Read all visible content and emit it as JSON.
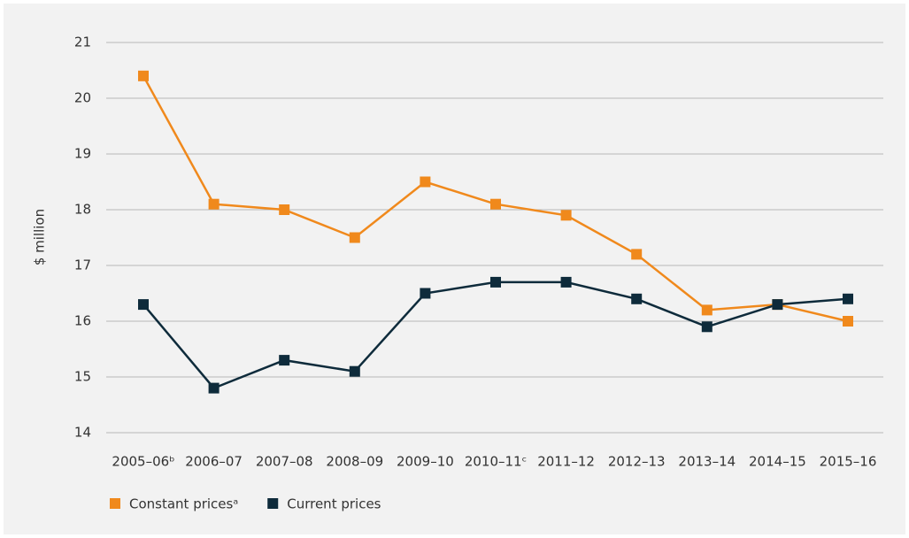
{
  "chart_data": {
    "type": "line",
    "ylabel": "$ million",
    "categories": [
      "2005–06ᵇ",
      "2006–07",
      "2007–08",
      "2008–09",
      "2009–10",
      "2010–11ᶜ",
      "2011–12",
      "2012–13",
      "2013–14",
      "2014–15",
      "2015–16"
    ],
    "series": [
      {
        "name": "Constant pricesᵃ",
        "color": "#f0891c",
        "values": [
          20.4,
          18.1,
          18.0,
          17.5,
          18.5,
          18.1,
          17.9,
          17.2,
          16.2,
          16.3,
          16.0
        ]
      },
      {
        "name": "Current prices",
        "color": "#0e2b3b",
        "values": [
          16.3,
          14.8,
          15.3,
          15.1,
          16.5,
          16.7,
          16.7,
          16.4,
          15.9,
          16.3,
          16.4
        ]
      }
    ],
    "ylim": [
      14,
      21
    ],
    "yticks": [
      14,
      15,
      16,
      17,
      18,
      19,
      20,
      21
    ],
    "grid": true,
    "legend": "bottom-left"
  }
}
